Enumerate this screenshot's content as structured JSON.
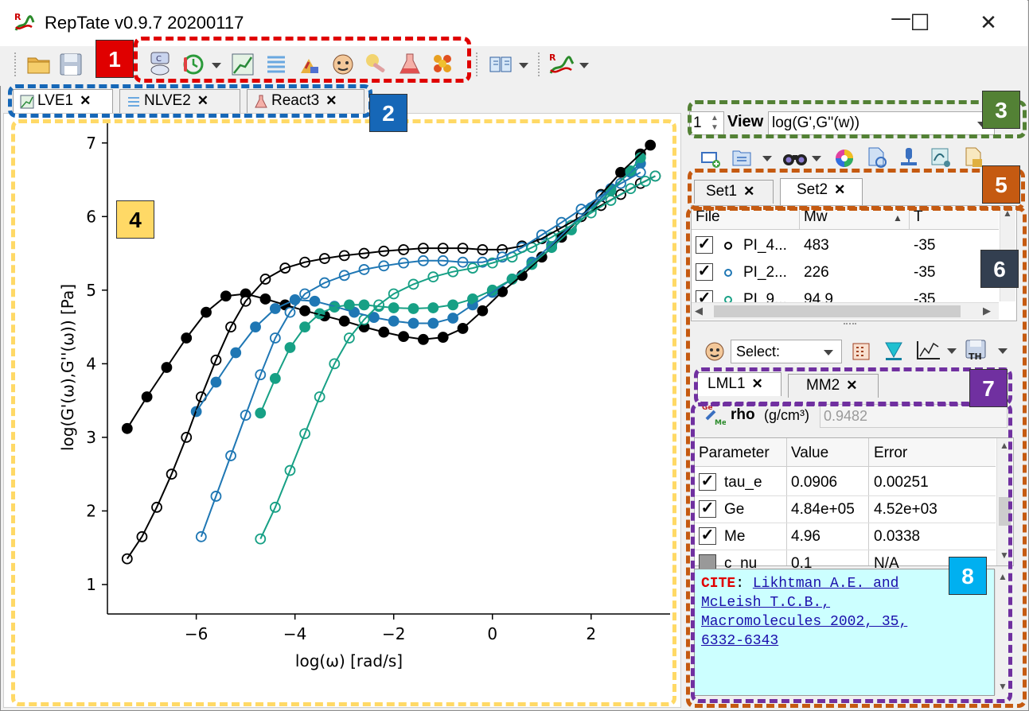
{
  "window": {
    "title": "RepTate v0.9.7 20200117",
    "minimize_glyph": "—",
    "maximize_glyph": "☐",
    "close_glyph": "✕"
  },
  "toolbar": {
    "icons": [
      "open-folder-icon",
      "save-icon",
      "gt-application-icon",
      "time-temperature-icon",
      "lve-application-icon",
      "nlve-application-icon",
      "mwd-application-icon",
      "tts-application-icon",
      "react-application-icon",
      "crystal-application-icon",
      "manual-icon",
      "reptate-icon"
    ]
  },
  "tabs": [
    {
      "label": "LVE1",
      "close": "✕",
      "active": true
    },
    {
      "label": "NLVE2",
      "close": "✕",
      "active": false
    },
    {
      "label": "React3",
      "close": "✕",
      "active": false
    }
  ],
  "badges": [
    {
      "label": "1",
      "color": "#e00000"
    },
    {
      "label": "2",
      "color": "#1667b7"
    },
    {
      "label": "3",
      "color": "#538135"
    },
    {
      "label": "4",
      "color": "#ffd966"
    },
    {
      "label": "5",
      "color": "#c55a11"
    },
    {
      "label": "6",
      "color": "#333f50"
    },
    {
      "label": "7",
      "color": "#7030a0"
    },
    {
      "label": "8",
      "color": "#00b0f0"
    }
  ],
  "view": {
    "spin_value": "1",
    "label": "View",
    "selected": "log(G',G''(w))"
  },
  "sets": [
    {
      "label": "Set1",
      "close": "✕",
      "active": false
    },
    {
      "label": "Set2",
      "close": "✕",
      "active": true
    }
  ],
  "file_table": {
    "headers": [
      "File",
      "Mw",
      "T"
    ],
    "rows": [
      {
        "file": "PI_4...",
        "mw": "483",
        "t": "-35",
        "color": "#000000"
      },
      {
        "file": "PI_2...",
        "mw": "226",
        "t": "-35",
        "color": "#1f77b4"
      },
      {
        "file": "PI_9...",
        "mw": "94.9",
        "t": "-35",
        "color": "#17a085"
      }
    ]
  },
  "theory_toolbar": {
    "select_label": "Select:"
  },
  "theories": [
    {
      "label": "LML1",
      "close": "✕",
      "active": true
    },
    {
      "label": "MM2",
      "close": "✕",
      "active": false
    }
  ],
  "rho": {
    "label": "rho",
    "unit": "(g/cm³)",
    "value": "0.9482"
  },
  "param_table": {
    "headers": [
      "Parameter",
      "Value",
      "Error"
    ],
    "rows": [
      {
        "name": "tau_e",
        "value": "0.0906",
        "error": "0.00251",
        "checked": true
      },
      {
        "name": "Ge",
        "value": "4.84e+05",
        "error": "4.52e+03",
        "checked": true
      },
      {
        "name": "Me",
        "value": "4.96",
        "error": "0.0338",
        "checked": true
      },
      {
        "name": "c_nu",
        "value": "0.1",
        "error": "N/A",
        "checked": false
      }
    ]
  },
  "cite": {
    "label": "CITE",
    "colon": ":",
    "lines": [
      "Likhtman A.E. and",
      "McLeish T.C.B.,",
      "Macromolecules 2002, 35,",
      "6332-6343"
    ]
  },
  "chart_data": {
    "type": "scatter",
    "xlabel": "log(ω) [rad/s]",
    "ylabel": "log(G'(ω),G''(ω)) [Pa]",
    "xlim": [
      -7.8,
      3.6
    ],
    "ylim": [
      0.6,
      7.3
    ],
    "xticks": [
      "−6",
      "−4",
      "−2",
      "0",
      "2"
    ],
    "yticks": [
      "1",
      "2",
      "3",
      "4",
      "5",
      "6",
      "7"
    ],
    "series": [
      {
        "name": "PI_4... G'",
        "color": "#000000",
        "filled": true,
        "x": [
          -7.4,
          -7.0,
          -6.6,
          -6.2,
          -5.8,
          -5.4,
          -5.0,
          -4.6,
          -4.2,
          -3.8,
          -3.4,
          -3.0,
          -2.6,
          -2.2,
          -1.8,
          -1.4,
          -1.0,
          -0.6,
          -0.2,
          0.2,
          0.6,
          1.0,
          1.4,
          1.8,
          2.2,
          2.6,
          3.0,
          3.2
        ],
        "y": [
          3.12,
          3.55,
          3.95,
          4.35,
          4.7,
          4.92,
          4.95,
          4.88,
          4.8,
          4.72,
          4.65,
          4.58,
          4.5,
          4.43,
          4.37,
          4.33,
          4.36,
          4.48,
          4.72,
          4.98,
          5.2,
          5.45,
          5.72,
          6.0,
          6.3,
          6.6,
          6.85,
          6.97
        ]
      },
      {
        "name": "PI_4... G''",
        "color": "#000000",
        "filled": false,
        "x": [
          -7.4,
          -7.1,
          -6.8,
          -6.5,
          -6.2,
          -5.9,
          -5.6,
          -5.3,
          -5.0,
          -4.6,
          -4.2,
          -3.8,
          -3.4,
          -3.0,
          -2.6,
          -2.2,
          -1.8,
          -1.4,
          -1.0,
          -0.6,
          -0.2,
          0.2,
          0.6,
          1.0,
          1.4,
          1.8,
          2.2,
          2.6,
          3.0,
          3.3
        ],
        "y": [
          1.35,
          1.65,
          2.05,
          2.5,
          3.0,
          3.55,
          4.05,
          4.5,
          4.85,
          5.15,
          5.3,
          5.38,
          5.43,
          5.47,
          5.5,
          5.53,
          5.55,
          5.57,
          5.57,
          5.57,
          5.55,
          5.55,
          5.6,
          5.7,
          5.85,
          6.0,
          6.15,
          6.3,
          6.45,
          6.55
        ]
      },
      {
        "name": "PI_2... G'",
        "color": "#1f77b4",
        "filled": true,
        "x": [
          -6.0,
          -5.6,
          -5.2,
          -4.8,
          -4.4,
          -4.0,
          -3.6,
          -3.2,
          -2.8,
          -2.4,
          -2.0,
          -1.6,
          -1.2,
          -0.8,
          -0.4,
          0.0,
          0.4,
          0.8,
          1.2,
          1.6,
          2.0,
          2.4,
          2.8,
          3.0
        ],
        "y": [
          3.35,
          3.75,
          4.15,
          4.5,
          4.75,
          4.87,
          4.85,
          4.78,
          4.7,
          4.63,
          4.58,
          4.55,
          4.55,
          4.62,
          4.8,
          4.97,
          5.15,
          5.38,
          5.62,
          5.88,
          6.12,
          6.38,
          6.6,
          6.72
        ]
      },
      {
        "name": "PI_2... G''",
        "color": "#1f77b4",
        "filled": false,
        "x": [
          -5.9,
          -5.6,
          -5.3,
          -5.0,
          -4.7,
          -4.4,
          -4.1,
          -3.8,
          -3.4,
          -3.0,
          -2.6,
          -2.2,
          -1.8,
          -1.4,
          -1.0,
          -0.6,
          -0.2,
          0.2,
          0.6,
          1.0,
          1.4,
          1.8,
          2.2,
          2.6,
          3.0
        ],
        "y": [
          1.65,
          2.2,
          2.75,
          3.3,
          3.85,
          4.35,
          4.7,
          4.95,
          5.1,
          5.2,
          5.28,
          5.33,
          5.37,
          5.4,
          5.4,
          5.38,
          5.38,
          5.45,
          5.58,
          5.75,
          5.92,
          6.1,
          6.28,
          6.45,
          6.6
        ]
      },
      {
        "name": "PI_9... G'",
        "color": "#17a085",
        "filled": true,
        "x": [
          -4.7,
          -4.4,
          -4.1,
          -3.8,
          -3.5,
          -3.2,
          -2.9,
          -2.6,
          -2.3,
          -2.0,
          -1.6,
          -1.2,
          -0.8,
          -0.4,
          0.0,
          0.4,
          0.8,
          1.2,
          1.6,
          2.0,
          2.4,
          2.8,
          3.0
        ],
        "y": [
          3.33,
          3.8,
          4.22,
          4.5,
          4.68,
          4.77,
          4.8,
          4.8,
          4.78,
          4.76,
          4.75,
          4.76,
          4.8,
          4.88,
          5.0,
          5.15,
          5.35,
          5.58,
          5.82,
          6.08,
          6.35,
          6.62,
          6.8
        ]
      },
      {
        "name": "PI_9... G''",
        "color": "#17a085",
        "filled": false,
        "x": [
          -4.7,
          -4.4,
          -4.1,
          -3.8,
          -3.5,
          -3.2,
          -2.9,
          -2.6,
          -2.3,
          -2.0,
          -1.6,
          -1.2,
          -0.8,
          -0.4,
          0.0,
          0.4,
          0.8,
          1.2,
          1.6,
          2.0,
          2.4,
          2.8,
          3.1,
          3.3
        ],
        "y": [
          1.62,
          2.05,
          2.55,
          3.05,
          3.55,
          4.0,
          4.35,
          4.6,
          4.8,
          4.95,
          5.08,
          5.18,
          5.25,
          5.3,
          5.37,
          5.45,
          5.58,
          5.72,
          5.88,
          6.05,
          6.22,
          6.38,
          6.48,
          6.55
        ]
      }
    ]
  }
}
